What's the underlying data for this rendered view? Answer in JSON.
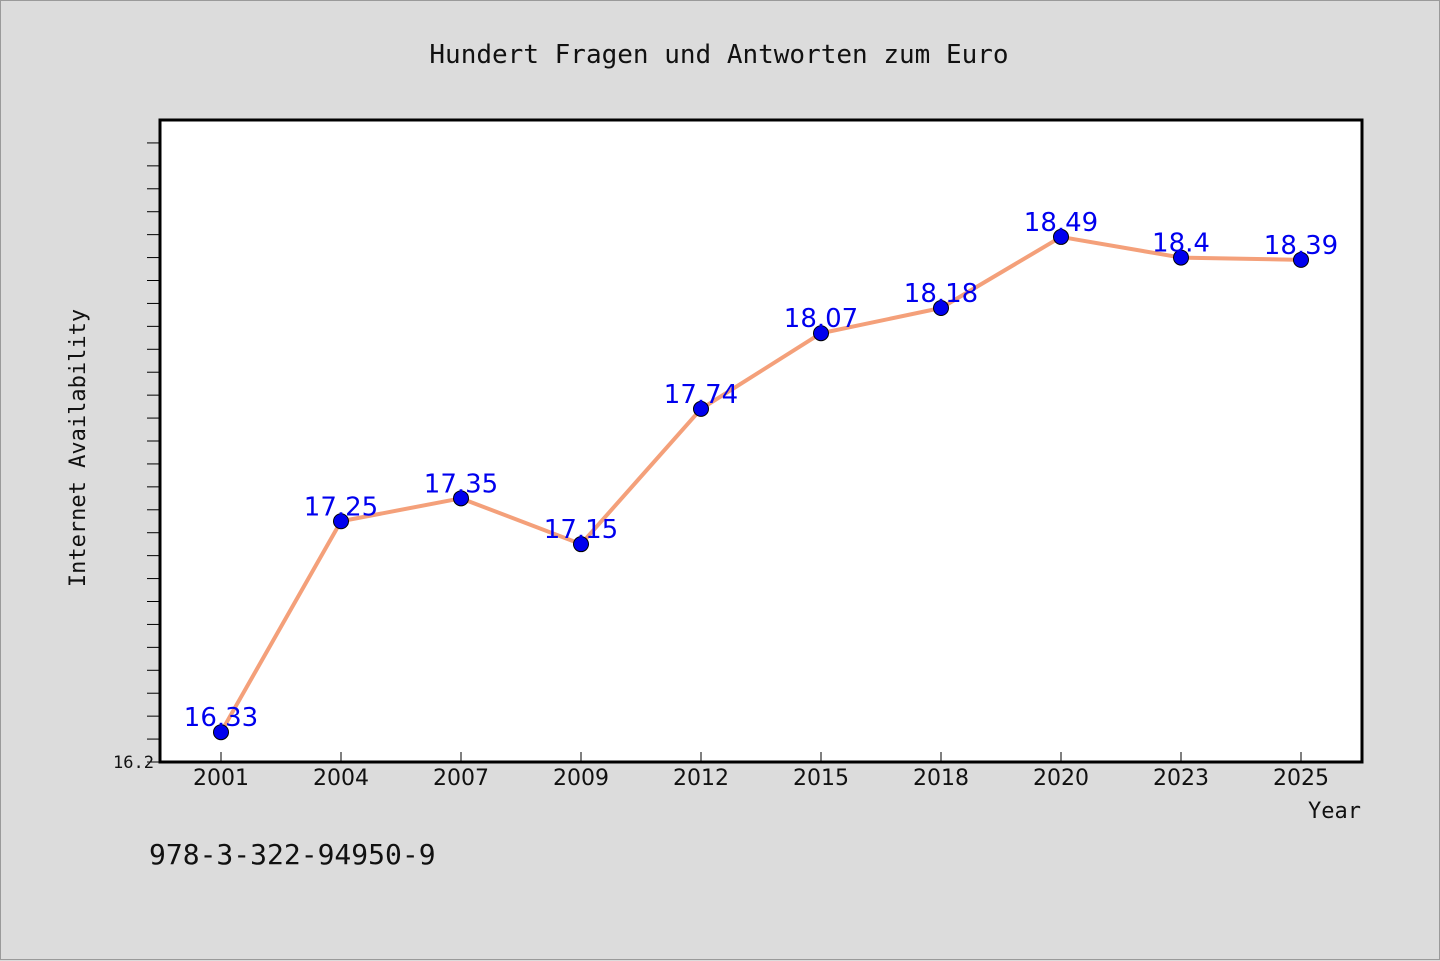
{
  "chart_data": {
    "type": "line",
    "title": "Hundert Fragen und Antworten zum Euro",
    "xlabel": "Year",
    "ylabel": "Internet Availability",
    "categories": [
      "2001",
      "2004",
      "2007",
      "2009",
      "2012",
      "2015",
      "2018",
      "2020",
      "2023",
      "2025"
    ],
    "series": [
      {
        "values": [
          16.33,
          17.25,
          17.35,
          17.15,
          17.74,
          18.07,
          18.18,
          18.49,
          18.4,
          18.39
        ],
        "data_labels": [
          "16.33",
          "17.25",
          "17.35",
          "17.15",
          "17.74",
          "18.07",
          "18.18",
          "18.49",
          "18.4",
          "18.39"
        ],
        "line_color": "#f4a07a",
        "marker_color": "#0000ee",
        "label_color": "#0000ee"
      }
    ],
    "ylim": [
      16.2,
      19.0
    ],
    "ytick_labels": [
      "16.2"
    ],
    "grid": false,
    "legend": "none"
  },
  "footer_text": "978-3-322-94950-9",
  "colors": {
    "background": "#dcdcdc",
    "plot_background": "#ffffff",
    "axis": "#000000"
  }
}
